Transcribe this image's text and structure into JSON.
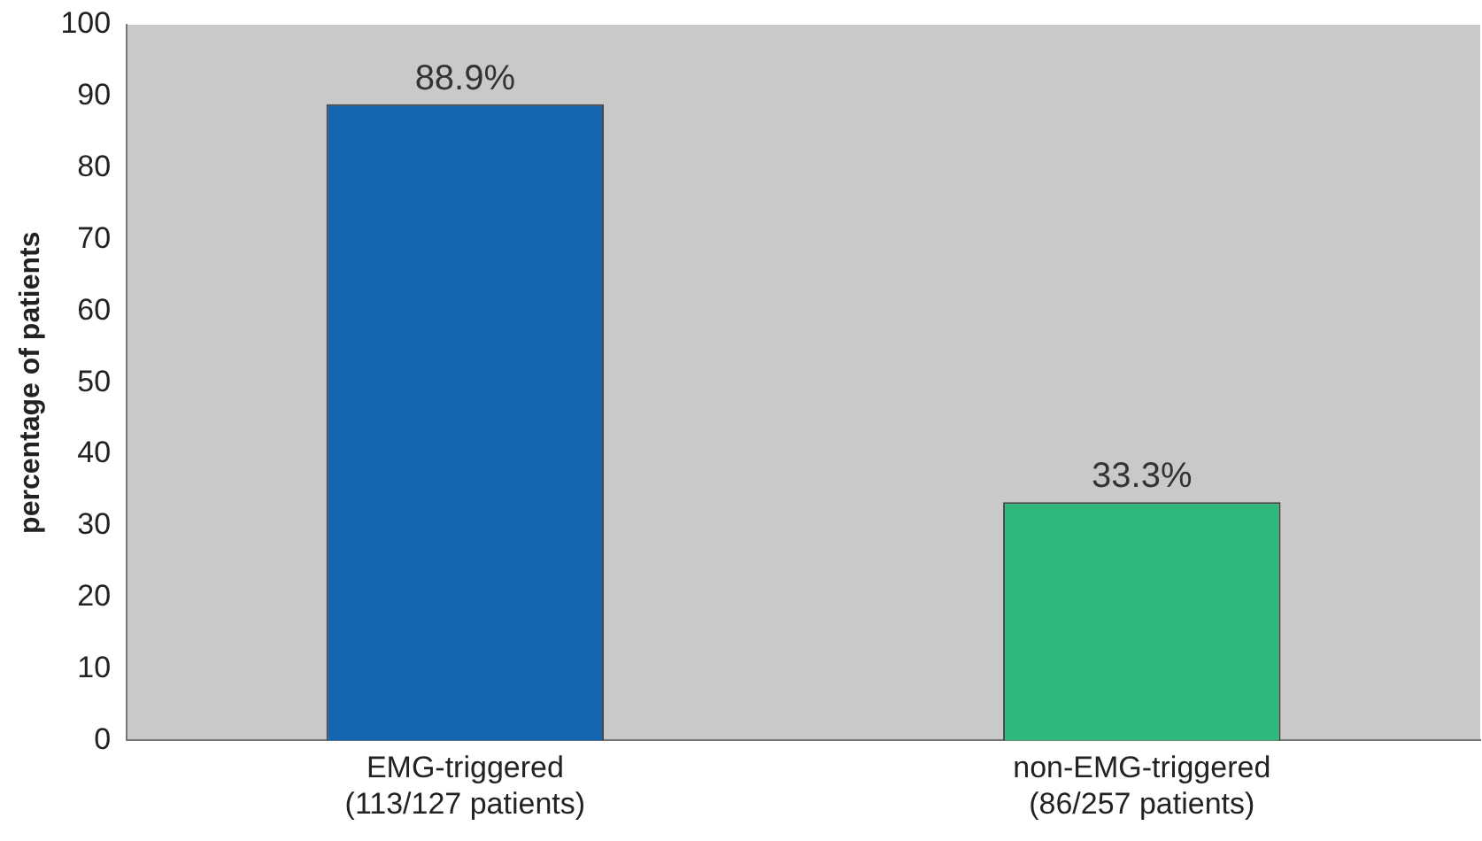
{
  "chart_data": {
    "type": "bar",
    "ylabel": "percentage of patients",
    "categories": [
      "EMG-triggered\n(113/127 patients)",
      "non-EMG-triggered\n(86/257 patients)"
    ],
    "values": [
      88.9,
      33.3
    ],
    "colors": [
      "#1565b3",
      "#2fb87c"
    ],
    "value_labels": [
      "88.9%",
      "33.3%"
    ],
    "ylim": [
      0,
      100
    ],
    "yticks": [
      0,
      10,
      20,
      30,
      40,
      50,
      60,
      70,
      80,
      90,
      100
    ],
    "grid": false,
    "legend": false
  }
}
